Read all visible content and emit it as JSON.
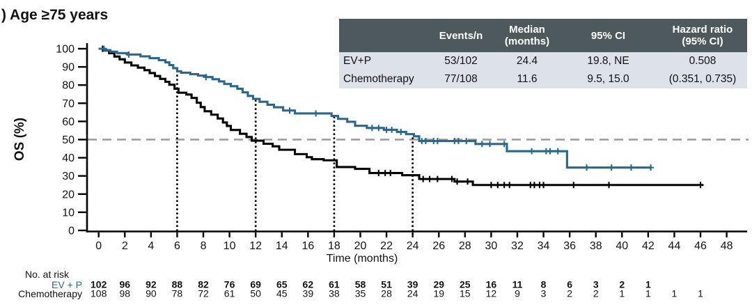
{
  "title": ") Age ≥75 years",
  "colors": {
    "evp_teal": "#26698E",
    "chemo_black": "#000000",
    "median_line_gray": "#9A9A9A",
    "table_header_bg": "#4D595D",
    "table_row_bg": "#DDE1EA"
  },
  "stats_table": {
    "col_headers": [
      "",
      "Events/n",
      "Median\n(months)",
      "95% CI",
      "Hazard ratio\n(95% CI)"
    ],
    "rows": [
      {
        "name": "EV+P",
        "events_n": "53/102",
        "median_months": "24.4",
        "ci_95": "19.8, NE",
        "hazard_ratio": "0.508"
      },
      {
        "name": "Chemotherapy",
        "events_n": "77/108",
        "median_months": "11.6",
        "ci_95": "9.5, 15.0",
        "hazard_ratio": "(0.351, 0.735)"
      }
    ]
  },
  "chart_data": {
    "type": "line",
    "subtype": "kaplan_meier_step",
    "title": ") Age ≥75 years",
    "xlabel": "Time (months)",
    "ylabel": "OS (%)",
    "xlim": [
      0,
      48
    ],
    "ylim": [
      0,
      100
    ],
    "x_ticks": [
      0,
      2,
      4,
      6,
      8,
      10,
      12,
      14,
      16,
      18,
      20,
      22,
      24,
      26,
      28,
      30,
      32,
      34,
      36,
      38,
      40,
      42,
      44,
      46,
      48
    ],
    "y_ticks": [
      0,
      10,
      20,
      30,
      40,
      50,
      60,
      70,
      80,
      90,
      100
    ],
    "grid": false,
    "legend": "none (series identified in stats table and risk table)",
    "reference_lines": {
      "horizontal_at_pct": 50,
      "vertical_at_months": [
        6,
        12,
        18,
        24
      ]
    },
    "series": [
      {
        "name": "EV+P",
        "color": "#26698E",
        "steps": [
          [
            0,
            100
          ],
          [
            0.5,
            99.2
          ],
          [
            0.9,
            98.4
          ],
          [
            1.4,
            97.6
          ],
          [
            2.2,
            96.8
          ],
          [
            3.2,
            95.8
          ],
          [
            3.9,
            94.8
          ],
          [
            4.6,
            93.7
          ],
          [
            5.1,
            92.5
          ],
          [
            5.4,
            91
          ],
          [
            5.7,
            89.3
          ],
          [
            6,
            87.6
          ],
          [
            6.3,
            86.8
          ],
          [
            7,
            86
          ],
          [
            7.6,
            85.2
          ],
          [
            8.2,
            84.4
          ],
          [
            8.7,
            83.2
          ],
          [
            9.2,
            82
          ],
          [
            9.6,
            80.6
          ],
          [
            10.1,
            79.4
          ],
          [
            10.6,
            78
          ],
          [
            11,
            76
          ],
          [
            11.4,
            74
          ],
          [
            11.8,
            72.4
          ],
          [
            12.3,
            70.8
          ],
          [
            12.9,
            69.2
          ],
          [
            13.4,
            67.8
          ],
          [
            14.1,
            66
          ],
          [
            15,
            64.4
          ],
          [
            17.8,
            63
          ],
          [
            18.3,
            61.4
          ],
          [
            19,
            59.8
          ],
          [
            19.6,
            57.6
          ],
          [
            20.5,
            56.4
          ],
          [
            21.8,
            55.4
          ],
          [
            22.8,
            54.2
          ],
          [
            23.5,
            53
          ],
          [
            24.1,
            51.8
          ],
          [
            24.5,
            49.2
          ],
          [
            28.8,
            47.6
          ],
          [
            31.2,
            43.6
          ],
          [
            35.8,
            34.6
          ],
          [
            42.2,
            34.6
          ]
        ],
        "censor_months": [
          0.4,
          2.3,
          8.2,
          14.6,
          16.6,
          20.9,
          21.4,
          22,
          22.4,
          23.1,
          24.7,
          25,
          25.6,
          25.9,
          27.2,
          27.5,
          28.1,
          29.3,
          29.9,
          31,
          33.1,
          34.2,
          34.5,
          35.1,
          37.3,
          39.2,
          40.7,
          42.2
        ]
      },
      {
        "name": "Chemotherapy",
        "color": "#000000",
        "steps": [
          [
            0,
            100
          ],
          [
            0.35,
            99
          ],
          [
            0.8,
            97.6
          ],
          [
            1.2,
            95.7
          ],
          [
            1.6,
            94.2
          ],
          [
            2,
            92.4
          ],
          [
            2.5,
            90.8
          ],
          [
            3,
            89.6
          ],
          [
            3.5,
            88.2
          ],
          [
            3.9,
            86.6
          ],
          [
            4.3,
            85
          ],
          [
            4.7,
            83.4
          ],
          [
            5.1,
            81.8
          ],
          [
            5.4,
            80.2
          ],
          [
            5.8,
            78
          ],
          [
            6.1,
            75.8
          ],
          [
            6.7,
            74.8
          ],
          [
            7.1,
            72.9
          ],
          [
            7.5,
            70.3
          ],
          [
            7.8,
            67.9
          ],
          [
            8.1,
            65.6
          ],
          [
            8.6,
            63.7
          ],
          [
            9.1,
            61.6
          ],
          [
            9.5,
            59.4
          ],
          [
            9.8,
            57.5
          ],
          [
            10.1,
            55.3
          ],
          [
            10.8,
            53.2
          ],
          [
            11.3,
            51.4
          ],
          [
            11.7,
            49.4
          ],
          [
            12.6,
            47.7
          ],
          [
            13.3,
            46.3
          ],
          [
            13.8,
            44.4
          ],
          [
            15,
            42
          ],
          [
            15.9,
            40.3
          ],
          [
            16.3,
            39.2
          ],
          [
            17.2,
            38.6
          ],
          [
            18.2,
            34.9
          ],
          [
            19.6,
            33.9
          ],
          [
            20.7,
            31.6
          ],
          [
            23.2,
            30.4
          ],
          [
            24.5,
            28.3
          ],
          [
            27.2,
            26.9
          ],
          [
            28.6,
            25
          ],
          [
            46.2,
            25
          ]
        ],
        "censor_months": [
          0.3,
          21.4,
          21.9,
          22.3,
          24.8,
          25.3,
          25.9,
          27,
          27.4,
          28.2,
          30,
          30.5,
          31,
          31.4,
          33,
          33.3,
          33.7,
          34,
          36.3,
          39,
          46
        ]
      }
    ]
  },
  "risk_table": {
    "caption": "No. at risk",
    "start_month": 0,
    "interval_months": 2,
    "rows": [
      {
        "name": "EV + P",
        "counts": [
          102,
          96,
          92,
          88,
          82,
          76,
          69,
          65,
          62,
          61,
          58,
          51,
          39,
          29,
          25,
          16,
          11,
          8,
          6,
          3,
          2,
          1
        ]
      },
      {
        "name": "Chemotherapy",
        "counts": [
          108,
          98,
          90,
          78,
          72,
          61,
          50,
          45,
          39,
          38,
          35,
          28,
          24,
          19,
          15,
          12,
          9,
          3,
          2,
          2,
          1,
          1,
          1,
          1
        ]
      }
    ]
  }
}
